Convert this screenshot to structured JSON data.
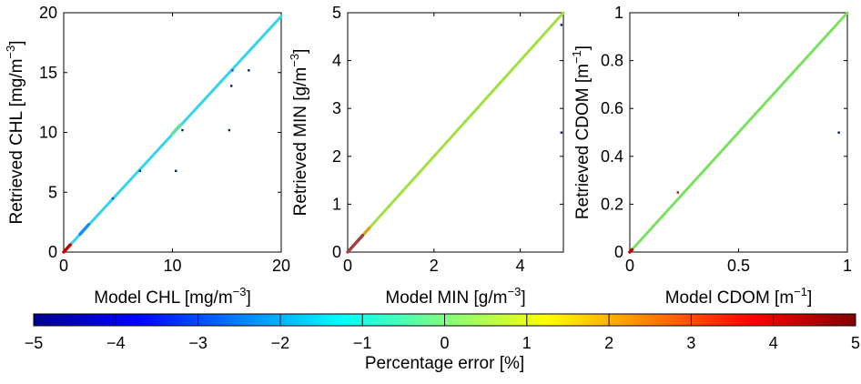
{
  "chart_data": [
    {
      "type": "scatter",
      "xlabel": "Model CHL [mg/m",
      "xlabel_sup": "−3",
      "xlabel_end": "]",
      "ylabel": "Retrieved CHL [mg/m",
      "ylabel_sup": "−3",
      "ylabel_end": "]",
      "xlim": [
        0,
        20
      ],
      "ylim": [
        0,
        20
      ],
      "xticks": [
        0,
        10,
        20
      ],
      "yticks": [
        0,
        5,
        10,
        15,
        20
      ],
      "line": {
        "x": [
          0,
          20
        ],
        "y": [
          0,
          19.7
        ],
        "color": "#33d4ee"
      },
      "line_segments": [
        {
          "x": [
            0,
            0.6
          ],
          "y": [
            0,
            0.6
          ],
          "color": "#c00000"
        },
        {
          "x": [
            1.5,
            2.3
          ],
          "y": [
            1.5,
            2.3
          ],
          "color": "#1a8cff"
        },
        {
          "x": [
            10,
            10.7
          ],
          "y": [
            9.9,
            10.6
          ],
          "color": "#66e0a0"
        }
      ],
      "points": [
        {
          "x": 4.5,
          "y": 4.5,
          "color": "#2a3ce0"
        },
        {
          "x": 7,
          "y": 6.8,
          "color": "#003080"
        },
        {
          "x": 10.3,
          "y": 6.8,
          "color": "#001a70"
        },
        {
          "x": 10.9,
          "y": 10.2,
          "color": "#001a70"
        },
        {
          "x": 15.2,
          "y": 10.2,
          "color": "#001a70"
        },
        {
          "x": 15.4,
          "y": 13.9,
          "color": "#001a70"
        },
        {
          "x": 15.5,
          "y": 15.2,
          "color": "#2a3ce0"
        },
        {
          "x": 17,
          "y": 15.2,
          "color": "#001a70"
        }
      ]
    },
    {
      "type": "scatter",
      "xlabel": "Model MIN [g/m",
      "xlabel_sup": "−3",
      "xlabel_end": "]",
      "ylabel": "Retrieved MIN [g/m",
      "ylabel_sup": "−3",
      "ylabel_end": "]",
      "xlim": [
        0,
        5
      ],
      "ylim": [
        0,
        5
      ],
      "xticks": [
        0,
        2,
        4
      ],
      "yticks": [
        0,
        1,
        2,
        3,
        4,
        5
      ],
      "line": {
        "x": [
          0,
          5
        ],
        "y": [
          0,
          5
        ],
        "color": "#a0e040"
      },
      "line_segments": [
        {
          "x": [
            0,
            0.35
          ],
          "y": [
            0,
            0.35
          ],
          "color": "#a04040"
        },
        {
          "x": [
            0.4,
            0.5
          ],
          "y": [
            0.4,
            0.5
          ],
          "color": "#e0a020"
        }
      ],
      "points": [
        {
          "x": 4.95,
          "y": 4.75,
          "color": "#001a70"
        },
        {
          "x": 4.95,
          "y": 2.5,
          "color": "#001a70"
        }
      ]
    },
    {
      "type": "scatter",
      "xlabel": "Model CDOM [m",
      "xlabel_sup": "−1",
      "xlabel_end": "]",
      "ylabel": "Retrieved CDOM [m",
      "ylabel_sup": "−1",
      "ylabel_end": "]",
      "xlim": [
        0,
        1
      ],
      "ylim": [
        0,
        1
      ],
      "xticks": [
        0,
        0.5,
        1
      ],
      "yticks": [
        0,
        0.2,
        0.4,
        0.6,
        0.8,
        1
      ],
      "line": {
        "x": [
          0,
          1
        ],
        "y": [
          0,
          1
        ],
        "color": "#7ae060"
      },
      "line_segments": [
        {
          "x": [
            0,
            0.01
          ],
          "y": [
            0,
            0.01
          ],
          "color": "#c00000"
        }
      ],
      "points": [
        {
          "x": 0.22,
          "y": 0.25,
          "color": "#c00000"
        },
        {
          "x": 0.96,
          "y": 0.5,
          "color": "#001a70"
        }
      ]
    }
  ],
  "colorbar": {
    "label": "Percentage error [%]",
    "range": [
      -5,
      5
    ],
    "ticks": [
      "−5",
      "−4",
      "−3",
      "−2",
      "−1",
      "0",
      "1",
      "2",
      "3",
      "4",
      "5"
    ],
    "colormap": "jet"
  }
}
